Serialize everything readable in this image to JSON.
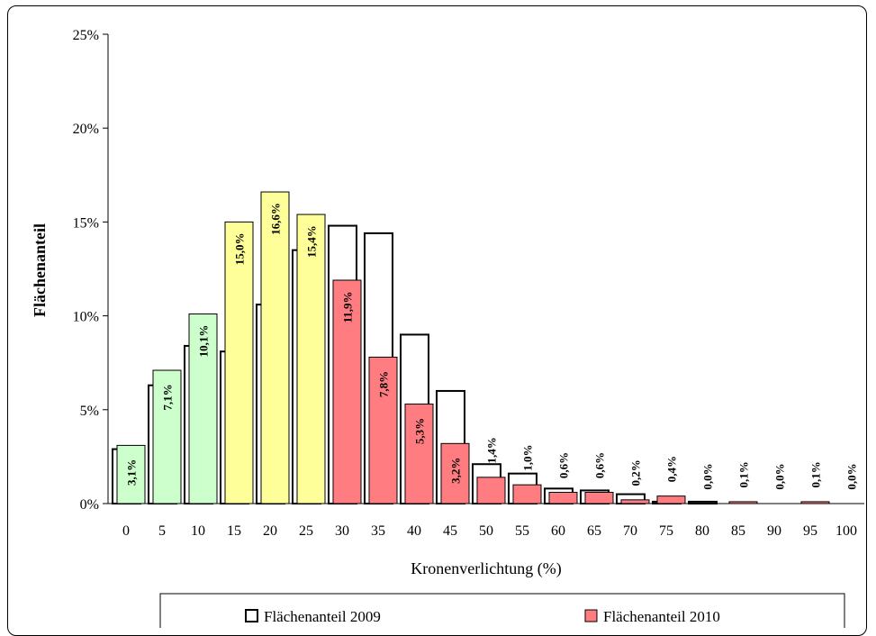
{
  "chart_data": {
    "type": "bar",
    "xlabel": "Kronenverlichtung (%)",
    "ylabel": "Flächenanteil",
    "ylim": [
      0,
      25
    ],
    "yticks": [
      "0%",
      "5%",
      "10%",
      "15%",
      "20%",
      "25%"
    ],
    "categories": [
      "0",
      "5",
      "10",
      "15",
      "20",
      "25",
      "30",
      "35",
      "40",
      "45",
      "50",
      "55",
      "60",
      "65",
      "70",
      "75",
      "80",
      "85",
      "90",
      "95",
      "100"
    ],
    "series": [
      {
        "name": "Flächenanteil 2009",
        "values": [
          2.9,
          6.3,
          8.4,
          8.1,
          10.6,
          13.5,
          14.8,
          14.4,
          9.0,
          6.0,
          2.1,
          1.6,
          0.8,
          0.7,
          0.5,
          0.1,
          0.1,
          0.0,
          0.0,
          0.0,
          0.0
        ],
        "color": "#ffffff"
      },
      {
        "name": "Flächenanteil 2010",
        "values": [
          3.1,
          7.1,
          10.1,
          15.0,
          16.6,
          15.4,
          11.9,
          7.8,
          5.3,
          3.2,
          1.4,
          1.0,
          0.6,
          0.6,
          0.2,
          0.4,
          0.0,
          0.1,
          0.0,
          0.1,
          0.0
        ],
        "labels": [
          "3,1%",
          "7,1%",
          "10,1%",
          "15,0%",
          "16,6%",
          "15,4%",
          "11,9%",
          "7,8%",
          "5,3%",
          "3,2%",
          "1,4%",
          "1,0%",
          "0,6%",
          "0,6%",
          "0,2%",
          "0,4%",
          "0,0%",
          "0,1%",
          "0,0%",
          "0,1%",
          "0,0%"
        ],
        "colors": [
          "#ccffcc",
          "#ccffcc",
          "#ccffcc",
          "#ffff99",
          "#ffff99",
          "#ffff99",
          "#ff7c80",
          "#ff7c80",
          "#ff7c80",
          "#ff7c80",
          "#ff7c80",
          "#ff7c80",
          "#ff7c80",
          "#ff7c80",
          "#ff7c80",
          "#ff7c80",
          "#ff7c80",
          "#ff7c80",
          "#ff7c80",
          "#ff7c80",
          "#ff7c80"
        ]
      }
    ],
    "legend": "bottom",
    "grid": false
  }
}
